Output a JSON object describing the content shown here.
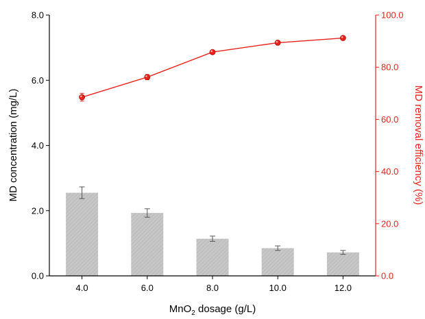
{
  "chart_data": {
    "type": "bar",
    "categories": [
      "4.0",
      "6.0",
      "8.0",
      "10.0",
      "12.0"
    ],
    "x": [
      4.0,
      6.0,
      8.0,
      10.0,
      12.0
    ],
    "xlabel": {
      "prefix": "MnO",
      "subscript": "2",
      "suffix": " dosage (g/L)"
    },
    "ylabel": "MD concentration (mg/L)",
    "y2label": "MD removal efficiency (%)",
    "ylim": [
      0,
      8.0
    ],
    "y2lim": [
      0,
      100.0
    ],
    "yticks": [
      "0.0",
      "2.0",
      "4.0",
      "6.0",
      "8.0"
    ],
    "y2ticks": [
      "0.0",
      "20.0",
      "40.0",
      "60.0",
      "80.0",
      "100.0"
    ],
    "series": [
      {
        "type": "bar",
        "axis": "left",
        "values": [
          2.55,
          1.93,
          1.14,
          0.85,
          0.72
        ],
        "errors": [
          0.18,
          0.13,
          0.08,
          0.07,
          0.06
        ],
        "color": "#c4c4c4"
      },
      {
        "type": "line",
        "axis": "right",
        "values": [
          68.5,
          76.2,
          85.8,
          89.4,
          91.2
        ],
        "errors": [
          1.5,
          1.0,
          0.7,
          0.6,
          0.5
        ],
        "color": "#e8221b"
      }
    ],
    "grid": false,
    "legend": "none"
  }
}
